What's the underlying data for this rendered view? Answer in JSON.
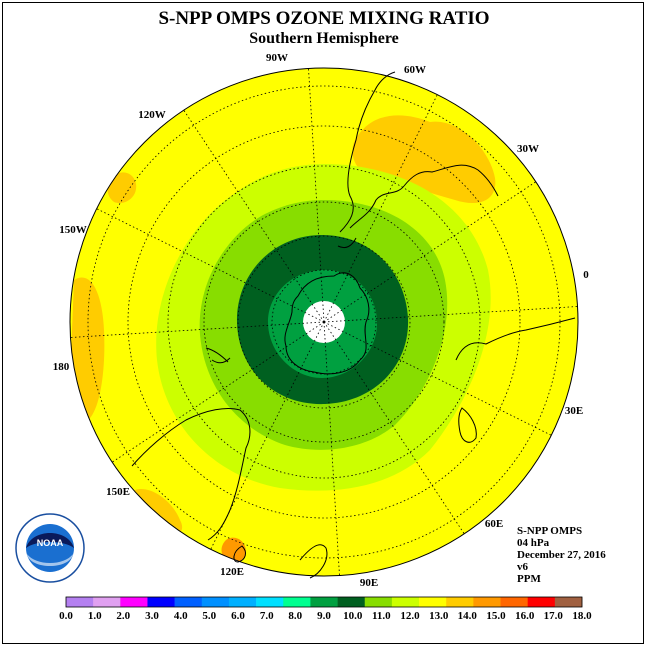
{
  "header": {
    "title": "S-NPP OMPS OZONE MIXING RATIO",
    "subtitle": "Southern Hemisphere"
  },
  "map": {
    "projection": "south-polar-stereographic",
    "longitude_labels": [
      "90W",
      "60W",
      "30W",
      "0",
      "30E",
      "60E",
      "90E",
      "120E",
      "150E",
      "180",
      "150W",
      "120W"
    ],
    "background_field_color": "#ffff00"
  },
  "info": {
    "instrument": "S-NPP OMPS",
    "level": "04 hPa",
    "date": "December 27, 2016",
    "version": "v6",
    "units": "PPM"
  },
  "logo": {
    "text": "NOAA",
    "ring_text": "NATIONAL OCEANIC AND ATMOSPHERIC ADMINISTRATION · U.S. DEPARTMENT OF COMMERCE"
  },
  "colorbar": {
    "ticks": [
      "0.0",
      "1.0",
      "2.0",
      "3.0",
      "4.0",
      "5.0",
      "6.0",
      "7.0",
      "8.0",
      "9.0",
      "10.0",
      "11.0",
      "12.0",
      "13.0",
      "14.0",
      "15.0",
      "16.0",
      "17.0",
      "18.0"
    ],
    "colors": [
      "#b480f0",
      "#e0a0f0",
      "#ff00ff",
      "#0000ff",
      "#0060ff",
      "#0090ff",
      "#00b0ff",
      "#00e0ff",
      "#00ff90",
      "#00a040",
      "#006020",
      "#88dd00",
      "#ccff00",
      "#ffff00",
      "#ffcc00",
      "#ff9900",
      "#ff6600",
      "#ff0000",
      "#a06040"
    ]
  }
}
